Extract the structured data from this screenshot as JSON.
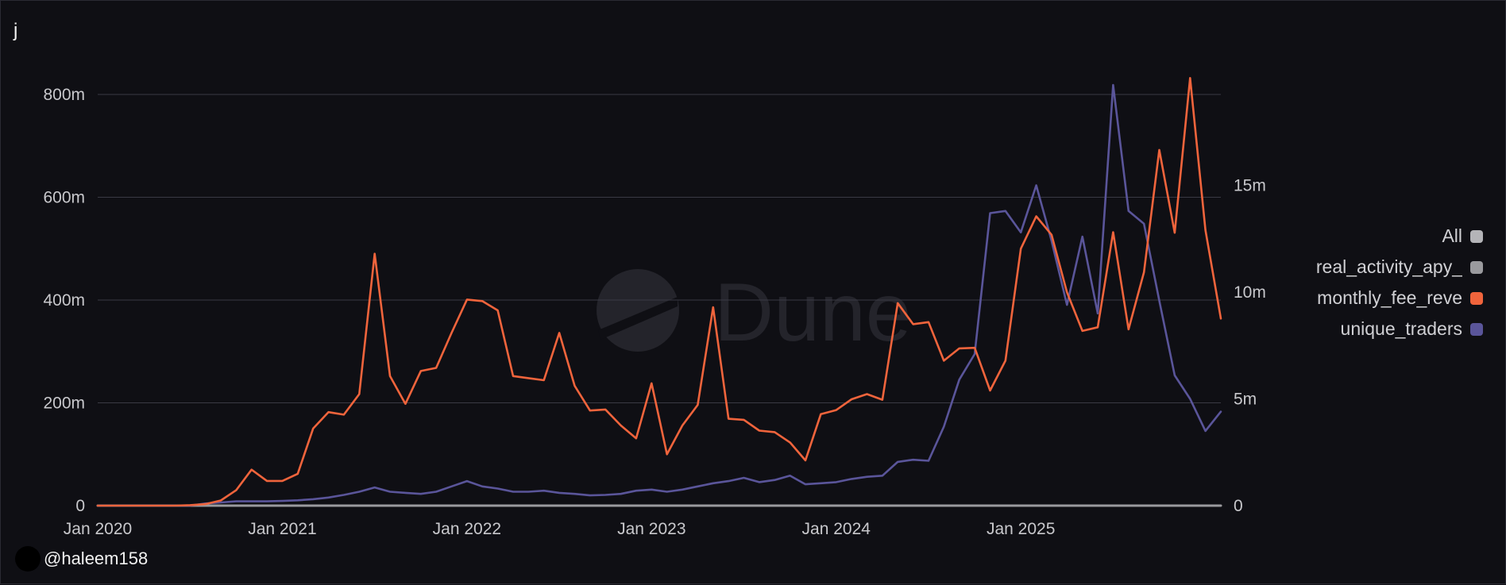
{
  "page": {
    "title": "j",
    "author": "@haleem158",
    "watermark": "Dune"
  },
  "colors": {
    "background": "#0f0f14",
    "grid": "#3a3a44",
    "monthly_fee": "#f0643c",
    "unique_traders": "#5a559a",
    "real_activity": "#9a9a9e",
    "all": "#b4b4b8"
  },
  "legend": [
    {
      "label": "All",
      "color": "#b4b4b8"
    },
    {
      "label": "real_activity_apy_",
      "color": "#9a9a9e"
    },
    {
      "label": "monthly_fee_reve",
      "color": "#f0643c"
    },
    {
      "label": "unique_traders",
      "color": "#5a559a"
    }
  ],
  "chart_data": {
    "type": "line",
    "x_start": "2020-01",
    "x_ticks": [
      "Jan 2020",
      "Jan 2021",
      "Jan 2022",
      "Jan 2023",
      "Jan 2024",
      "Jan 2025"
    ],
    "y_left": {
      "min": 0,
      "max": 800000000,
      "ticks": [
        "0",
        "200m",
        "400m",
        "600m",
        "800m"
      ]
    },
    "y_right": {
      "min": 0,
      "max": 15000000,
      "ticks": [
        "0",
        "5m",
        "10m",
        "15m"
      ]
    },
    "grid": true,
    "legend_position": "right",
    "series": [
      {
        "name": "monthly_fee_reve",
        "axis": "left",
        "color": "#f0643c",
        "values": [
          0,
          0,
          0,
          0,
          0,
          0,
          1000000,
          3000000,
          10000000,
          30000000,
          70000000,
          48000000,
          48000000,
          62000000,
          150000000,
          182000000,
          177000000,
          217000000,
          490000000,
          252000000,
          198000000,
          262000000,
          268000000,
          336000000,
          401000000,
          398000000,
          380000000,
          252000000,
          248000000,
          244000000,
          336000000,
          233000000,
          185000000,
          187000000,
          156000000,
          131000000,
          238000000,
          100000000,
          156000000,
          196000000,
          386000000,
          169000000,
          167000000,
          146000000,
          143000000,
          123000000,
          88000000,
          178000000,
          186000000,
          207000000,
          217000000,
          206000000,
          394000000,
          353000000,
          357000000,
          282000000,
          306000000,
          307000000,
          224000000,
          282000000,
          500000000,
          563000000,
          527000000,
          415000000,
          340000000,
          347000000,
          532000000,
          343000000,
          454000000,
          692000000,
          531000000,
          832000000,
          536000000,
          364000000
        ]
      },
      {
        "name": "unique_traders",
        "axis": "right",
        "color": "#5a559a",
        "values": [
          0,
          0,
          0,
          0,
          0,
          0,
          0,
          100000,
          150000,
          200000,
          200000,
          200000,
          220000,
          250000,
          300000,
          380000,
          500000,
          650000,
          850000,
          650000,
          600000,
          550000,
          650000,
          900000,
          1150000,
          900000,
          800000,
          650000,
          650000,
          700000,
          600000,
          550000,
          480000,
          500000,
          550000,
          700000,
          750000,
          650000,
          750000,
          900000,
          1050000,
          1150000,
          1300000,
          1100000,
          1200000,
          1400000,
          1000000,
          1050000,
          1100000,
          1250000,
          1350000,
          1400000,
          2050000,
          2150000,
          2100000,
          3700000,
          5900000,
          7100000,
          13700000,
          13800000,
          12800000,
          15000000,
          12400000,
          9400000,
          12600000,
          9000000,
          19700000,
          13800000,
          13200000,
          9600000,
          6100000,
          5000000,
          3500000,
          4400000
        ]
      },
      {
        "name": "real_activity_apy_",
        "axis": "left",
        "color": "#9a9a9e",
        "values": [
          0,
          0,
          0,
          0,
          0,
          0,
          0,
          0,
          0,
          0,
          0,
          0,
          0,
          0,
          0,
          0,
          0,
          0,
          0,
          0,
          0,
          0,
          0,
          0,
          0,
          0,
          0,
          0,
          0,
          0,
          0,
          0,
          0,
          0,
          0,
          0,
          0,
          0,
          0,
          0,
          0,
          0,
          0,
          0,
          0,
          0,
          0,
          0,
          0,
          0,
          0,
          0,
          0,
          0,
          0,
          0,
          0,
          0,
          0,
          0,
          0,
          0,
          0,
          0,
          0,
          0,
          0,
          0,
          0,
          0,
          0,
          0,
          0,
          0
        ]
      }
    ]
  }
}
